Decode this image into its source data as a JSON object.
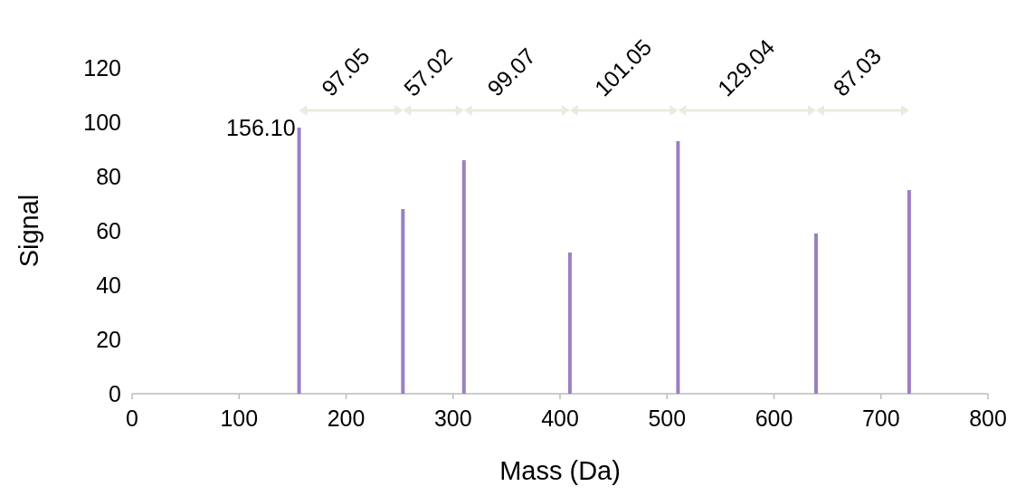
{
  "chart_data": {
    "type": "bar",
    "xlabel": "Mass (Da)",
    "ylabel": "Signal",
    "x": [
      156.1,
      253.15,
      310.17,
      409.24,
      510.29,
      639.33,
      726.36
    ],
    "values": [
      98,
      68,
      86,
      52,
      93,
      59,
      75
    ],
    "color": "#9b80c2",
    "xlim": [
      0,
      800
    ],
    "xticks": [
      0,
      100,
      200,
      300,
      400,
      500,
      600,
      700,
      800
    ],
    "ylim": [
      0,
      120
    ],
    "yticks": [
      0,
      20,
      40,
      60,
      80,
      100,
      120
    ],
    "grid": false,
    "annotations": [
      {
        "text": "156.10",
        "x": 156.1,
        "y": 98
      },
      "97.05",
      "57.02",
      "99.07",
      "101.05",
      "129.04",
      "87.03"
    ]
  }
}
